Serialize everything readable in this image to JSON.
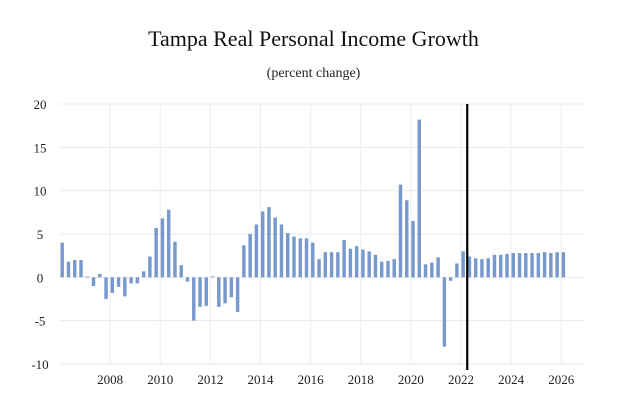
{
  "chart_data": {
    "type": "bar",
    "title": "Tampa Real Personal Income Growth",
    "subtitle": "(percent change)",
    "xlabel": "",
    "ylabel": "",
    "ylim": [
      -10,
      20
    ],
    "yticks": [
      -10,
      -5,
      0,
      5,
      10,
      15,
      20
    ],
    "xticks": [
      2008,
      2010,
      2012,
      2014,
      2016,
      2018,
      2020,
      2022,
      2024,
      2026
    ],
    "forecast_marker": 2022.25,
    "bar_color": "#7799cc",
    "marker_color": "#000000",
    "grid": true,
    "start_year": 2006,
    "start_quarter": 1,
    "values": [
      4.0,
      1.8,
      2.0,
      2.0,
      0.1,
      -1.0,
      0.4,
      -2.5,
      -1.8,
      -1.1,
      -2.2,
      -0.7,
      -0.7,
      0.7,
      2.4,
      5.7,
      6.8,
      7.8,
      4.1,
      1.4,
      -0.5,
      -5.0,
      -3.4,
      -3.3,
      0.1,
      -3.4,
      -3.0,
      -2.3,
      -4.0,
      3.7,
      5.0,
      6.1,
      7.6,
      8.1,
      6.9,
      6.1,
      5.1,
      4.7,
      4.5,
      4.5,
      4.0,
      2.1,
      2.9,
      2.9,
      2.9,
      4.3,
      3.3,
      3.6,
      3.2,
      3.0,
      2.6,
      1.8,
      1.9,
      2.1,
      10.7,
      8.9,
      6.5,
      18.2,
      1.5,
      1.7,
      2.3,
      -8.0,
      -0.4,
      1.6,
      3.0,
      2.4,
      2.2,
      2.1,
      2.2,
      2.6,
      2.6,
      2.7,
      2.8,
      2.8,
      2.8,
      2.8,
      2.8,
      2.9,
      2.8,
      2.9,
      2.9
    ]
  }
}
